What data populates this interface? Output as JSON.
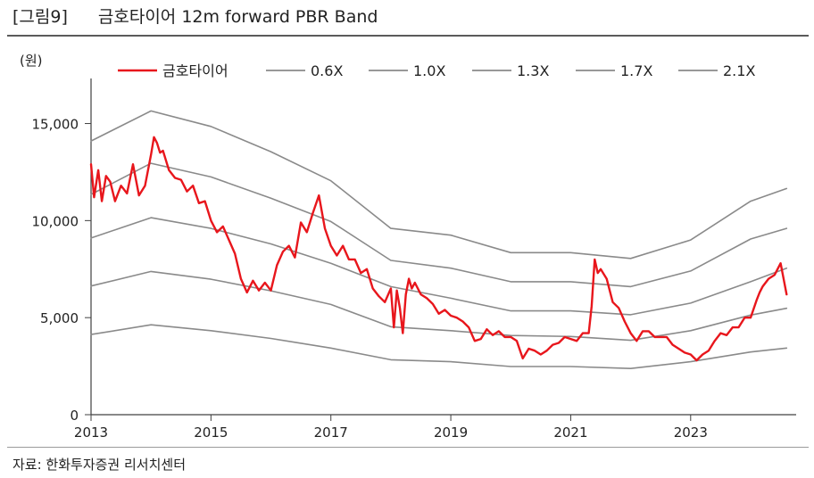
{
  "figure": {
    "label": "[그림9]",
    "title": "금호타이어 12m forward PBR Band",
    "unit": "(원)",
    "source": "자료: 한화투자증권 리서치센터"
  },
  "chart_data": {
    "type": "line",
    "title": "금호타이어 12m forward PBR Band",
    "xlabel": "",
    "ylabel": "(원)",
    "ylim": [
      0,
      17000
    ],
    "xlim": [
      2013.0,
      2024.7
    ],
    "xticks": [
      2013,
      2015,
      2017,
      2019,
      2021,
      2023
    ],
    "xtick_labels": [
      "2013",
      "2015",
      "2017",
      "2019",
      "2021",
      "2023"
    ],
    "yticks": [
      0,
      5000,
      10000,
      15000
    ],
    "ytick_labels": [
      "0",
      "5,000",
      "10,000",
      "15,000"
    ],
    "legend": {
      "placement": "top",
      "entries": [
        "금호타이어",
        "0.6X",
        "1.0X",
        "1.3X",
        "1.7X",
        "2.1X"
      ]
    },
    "colors": {
      "price": "#e8161c",
      "band": "#8a8a8a",
      "axis": "#404040"
    },
    "bvps_anchor_years": [
      2013.0,
      2014.0,
      2015.0,
      2016.0,
      2017.0,
      2018.0,
      2019.0,
      2020.0,
      2021.0,
      2022.0,
      2023.0,
      2024.0,
      2024.6
    ],
    "series": [
      {
        "name": "0.6X",
        "role": "band",
        "x": [
          2013.0,
          2014.0,
          2015.0,
          2016.0,
          2017.0,
          2018.0,
          2019.0,
          2020.0,
          2021.0,
          2022.0,
          2023.0,
          2024.0,
          2024.6
        ],
        "values": [
          4130,
          4630,
          4330,
          3930,
          3430,
          2830,
          2730,
          2480,
          2480,
          2380,
          2730,
          3230,
          3430
        ]
      },
      {
        "name": "1.0X",
        "role": "band",
        "x": [
          2013.0,
          2014.0,
          2015.0,
          2016.0,
          2017.0,
          2018.0,
          2019.0,
          2020.0,
          2021.0,
          2022.0,
          2023.0,
          2024.0,
          2024.6
        ],
        "values": [
          6630,
          7380,
          6980,
          6380,
          5680,
          4530,
          4330,
          4080,
          4030,
          3830,
          4330,
          5130,
          5480
        ]
      },
      {
        "name": "1.3X",
        "role": "band",
        "x": [
          2013.0,
          2014.0,
          2015.0,
          2016.0,
          2017.0,
          2018.0,
          2019.0,
          2020.0,
          2021.0,
          2022.0,
          2023.0,
          2024.0,
          2024.6
        ],
        "values": [
          9100,
          10150,
          9600,
          8800,
          7800,
          6600,
          6000,
          5350,
          5350,
          5150,
          5750,
          6850,
          7550
        ]
      },
      {
        "name": "1.7X",
        "role": "band",
        "x": [
          2013.0,
          2014.0,
          2015.0,
          2016.0,
          2017.0,
          2018.0,
          2019.0,
          2020.0,
          2021.0,
          2022.0,
          2023.0,
          2024.0,
          2024.6
        ],
        "values": [
          11350,
          12950,
          12250,
          11150,
          9950,
          7950,
          7550,
          6850,
          6850,
          6600,
          7400,
          9050,
          9600
        ]
      },
      {
        "name": "2.1X",
        "role": "band",
        "x": [
          2013.0,
          2014.0,
          2015.0,
          2016.0,
          2017.0,
          2018.0,
          2019.0,
          2020.0,
          2021.0,
          2022.0,
          2023.0,
          2024.0,
          2024.6
        ],
        "values": [
          14100,
          15650,
          14850,
          13550,
          12050,
          9600,
          9250,
          8350,
          8350,
          8050,
          9000,
          11000,
          11650
        ]
      },
      {
        "name": "금호타이어",
        "role": "price",
        "x": [
          2013.0,
          2013.05,
          2013.12,
          2013.18,
          2013.25,
          2013.32,
          2013.4,
          2013.5,
          2013.6,
          2013.7,
          2013.8,
          2013.9,
          2014.0,
          2014.05,
          2014.1,
          2014.15,
          2014.2,
          2014.3,
          2014.4,
          2014.5,
          2014.6,
          2014.7,
          2014.8,
          2014.9,
          2015.0,
          2015.1,
          2015.2,
          2015.3,
          2015.4,
          2015.5,
          2015.6,
          2015.7,
          2015.8,
          2015.9,
          2016.0,
          2016.1,
          2016.2,
          2016.3,
          2016.4,
          2016.5,
          2016.6,
          2016.7,
          2016.8,
          2016.9,
          2017.0,
          2017.1,
          2017.2,
          2017.3,
          2017.4,
          2017.5,
          2017.6,
          2017.7,
          2017.8,
          2017.9,
          2018.0,
          2018.05,
          2018.1,
          2018.15,
          2018.2,
          2018.25,
          2018.3,
          2018.35,
          2018.4,
          2018.5,
          2018.6,
          2018.7,
          2018.8,
          2018.9,
          2019.0,
          2019.1,
          2019.2,
          2019.3,
          2019.4,
          2019.5,
          2019.6,
          2019.7,
          2019.8,
          2019.9,
          2020.0,
          2020.1,
          2020.2,
          2020.3,
          2020.4,
          2020.5,
          2020.6,
          2020.7,
          2020.8,
          2020.9,
          2021.0,
          2021.1,
          2021.2,
          2021.3,
          2021.35,
          2021.4,
          2021.45,
          2021.5,
          2021.6,
          2021.7,
          2021.8,
          2021.9,
          2022.0,
          2022.1,
          2022.2,
          2022.3,
          2022.4,
          2022.5,
          2022.6,
          2022.7,
          2022.8,
          2022.9,
          2023.0,
          2023.1,
          2023.2,
          2023.3,
          2023.4,
          2023.5,
          2023.6,
          2023.7,
          2023.8,
          2023.9,
          2024.0,
          2024.1,
          2024.15,
          2024.2,
          2024.3,
          2024.4,
          2024.5,
          2024.6
        ],
        "values": [
          12900,
          11200,
          12600,
          11000,
          12300,
          12000,
          11000,
          11800,
          11400,
          12900,
          11300,
          11800,
          13400,
          14300,
          14000,
          13500,
          13600,
          12600,
          12200,
          12100,
          11500,
          11800,
          10900,
          11000,
          10000,
          9400,
          9700,
          9000,
          8300,
          7000,
          6300,
          6900,
          6400,
          6800,
          6400,
          7700,
          8400,
          8700,
          8100,
          9900,
          9400,
          10400,
          11300,
          9600,
          8700,
          8200,
          8700,
          8000,
          8000,
          7300,
          7500,
          6500,
          6100,
          5800,
          6500,
          4500,
          6400,
          5500,
          4200,
          6200,
          7000,
          6500,
          6800,
          6200,
          6000,
          5700,
          5200,
          5400,
          5100,
          5000,
          4800,
          4500,
          3800,
          3900,
          4400,
          4100,
          4300,
          4000,
          4000,
          3800,
          2900,
          3400,
          3300,
          3100,
          3300,
          3600,
          3700,
          4000,
          3900,
          3800,
          4200,
          4200,
          5600,
          8000,
          7300,
          7500,
          7000,
          5800,
          5500,
          4800,
          4200,
          3800,
          4300,
          4300,
          4000,
          4000,
          4000,
          3600,
          3400,
          3200,
          3100,
          2800,
          3100,
          3300,
          3800,
          4200,
          4100,
          4500,
          4500,
          5000,
          5000,
          5900,
          6300,
          6600,
          7000,
          7200,
          7800,
          6200
        ]
      }
    ]
  }
}
